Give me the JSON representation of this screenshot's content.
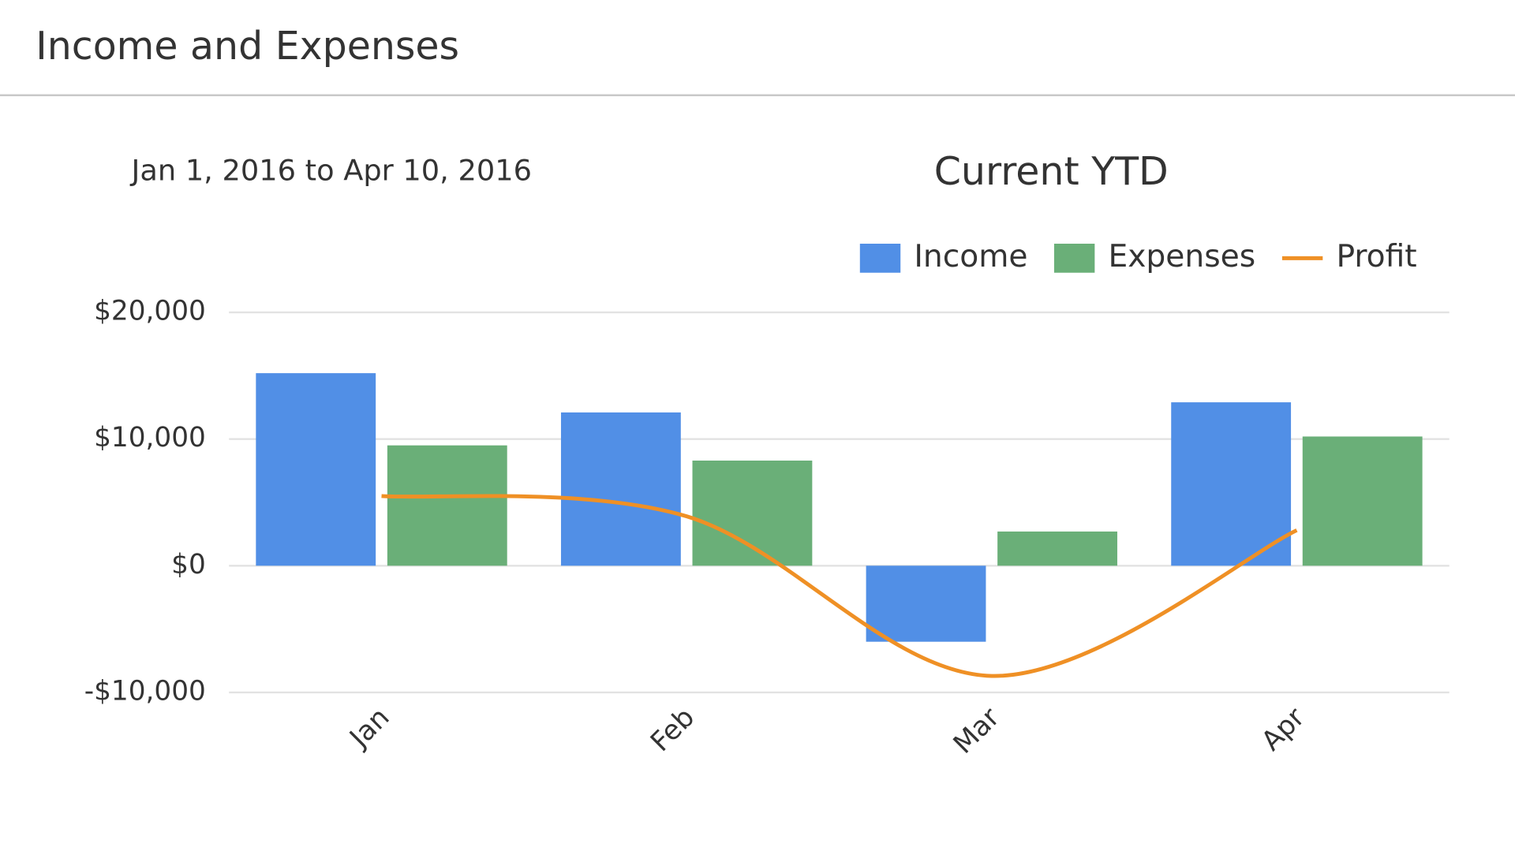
{
  "header": {
    "title": "Income and Expenses"
  },
  "chart_data": {
    "type": "bar",
    "title": "Current YTD",
    "subtitle": "Jan 1, 2016 to Apr 10, 2016",
    "categories": [
      "Jan",
      "Feb",
      "Mar",
      "Apr"
    ],
    "series": [
      {
        "name": "Income",
        "color": "#518fe6",
        "type": "bar",
        "values": [
          15200,
          12100,
          -6000,
          12900
        ]
      },
      {
        "name": "Expenses",
        "color": "#6aaf78",
        "type": "bar",
        "values": [
          9500,
          8300,
          2700,
          10200
        ]
      },
      {
        "name": "Profit",
        "color": "#ef9025",
        "type": "line",
        "smooth": true,
        "values": [
          5500,
          3900,
          -8700,
          2800
        ]
      }
    ],
    "ylim": [
      -10000,
      20000
    ],
    "yticks": [
      {
        "value": -10000,
        "label": "-$10,000"
      },
      {
        "value": 0,
        "label": "$0"
      },
      {
        "value": 10000,
        "label": "$10,000"
      },
      {
        "value": 20000,
        "label": "$20,000"
      }
    ],
    "grid": true,
    "legend": "top-right"
  }
}
